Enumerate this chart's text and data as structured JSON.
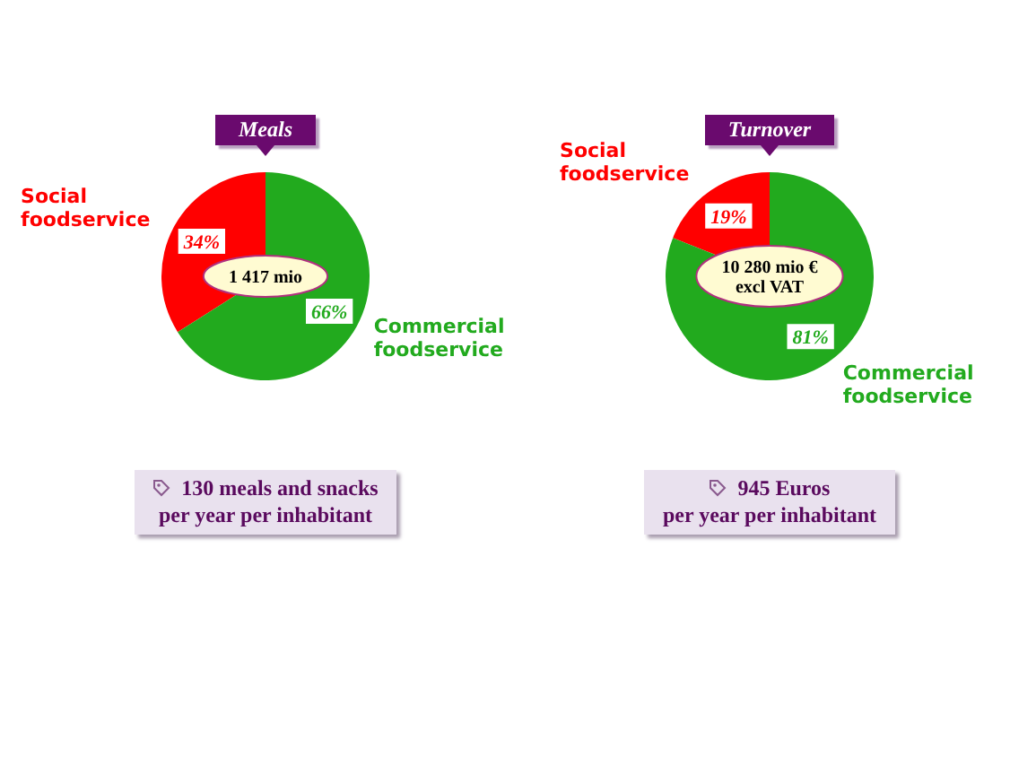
{
  "chart_data": [
    {
      "type": "pie",
      "title": "Meals",
      "categories": [
        "Social foodservice",
        "Commercial foodservice"
      ],
      "values": [
        34,
        66
      ],
      "colors": [
        "#ff0000",
        "#22aa1e"
      ],
      "value_labels": [
        "34%",
        "66%"
      ],
      "annotations": [
        "1 417 mio",
        "130 meals and snacks\nper year per inhabitant"
      ]
    },
    {
      "type": "pie",
      "title": "Turnover",
      "categories": [
        "Social foodservice",
        "Commercial foodservice"
      ],
      "values": [
        19,
        81
      ],
      "colors": [
        "#ff0000",
        "#22aa1e"
      ],
      "value_labels": [
        "19%",
        "81%"
      ],
      "annotations": [
        "10 280 mio €\nexcl VAT",
        "945 Euros\nper year per inhabitant"
      ]
    }
  ]
}
